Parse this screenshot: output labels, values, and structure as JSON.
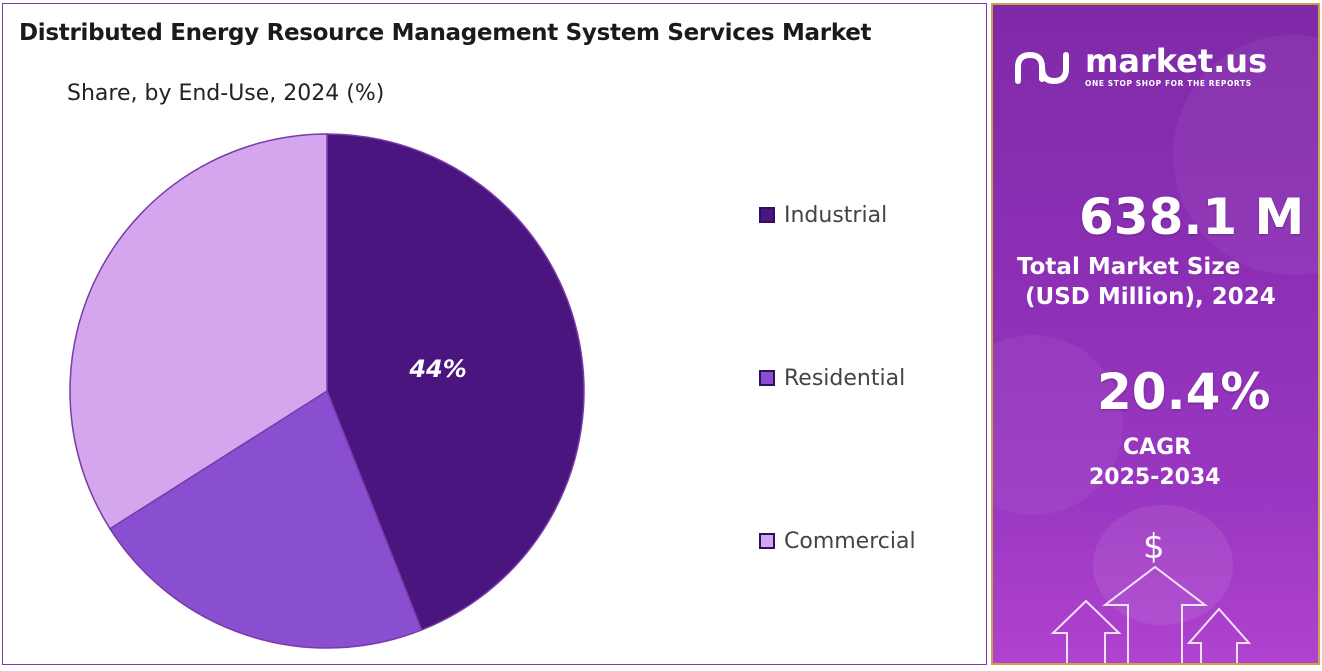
{
  "chart_data": {
    "type": "pie",
    "title": "Distributed Energy Resource Management System Services Market",
    "subtitle": "Share, by End-Use, 2024 (%)",
    "categories": [
      "Industrial",
      "Residential",
      "Commercial"
    ],
    "values": [
      44,
      22,
      34
    ],
    "data_labels": [
      "44%",
      "",
      ""
    ],
    "colors": [
      "#4b1580",
      "#8a4fd0",
      "#d3a6ee"
    ],
    "legend_position": "right"
  },
  "sidebar": {
    "brand_name": "market.us",
    "brand_tagline": "ONE STOP SHOP FOR THE REPORTS",
    "market_size_value": "638.1 M",
    "market_size_label_1": "Total Market Size",
    "market_size_label_2": "(USD Million), 2024",
    "cagr_value": "20.4%",
    "cagr_label_1": "CAGR",
    "cagr_label_2": "2025-2034",
    "dollar_symbol": "$",
    "logo_icon": "market-us-logo-icon",
    "decor_icon": "growth-arrows-icon"
  }
}
